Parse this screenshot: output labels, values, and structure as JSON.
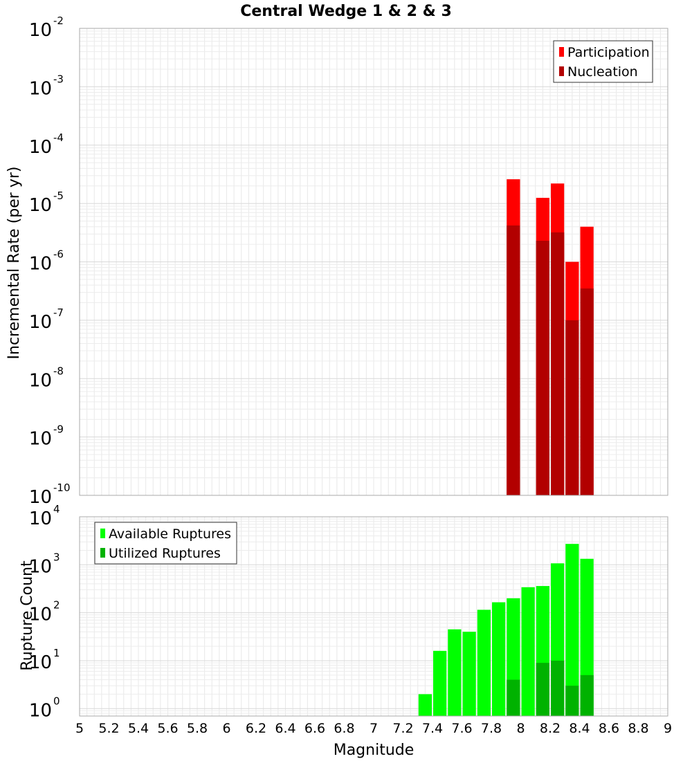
{
  "chart_data": [
    {
      "type": "bar",
      "title": "Central Wedge 1 & 2 & 3",
      "xlabel": "",
      "ylabel": "Incremental Rate (per yr)",
      "yscale": "log",
      "xlim": [
        5,
        9
      ],
      "ylim": [
        1e-10,
        0.01
      ],
      "yticks": [
        {
          "base": "10",
          "exp": "-2"
        },
        {
          "base": "10",
          "exp": "-3"
        },
        {
          "base": "10",
          "exp": "-4"
        },
        {
          "base": "10",
          "exp": "-5"
        },
        {
          "base": "10",
          "exp": "-6"
        },
        {
          "base": "10",
          "exp": "-7"
        },
        {
          "base": "10",
          "exp": "-8"
        },
        {
          "base": "10",
          "exp": "-9"
        },
        {
          "base": "10",
          "exp": "-10"
        }
      ],
      "grid": true,
      "legend_position": "top-right",
      "series": [
        {
          "name": "Participation",
          "color": "#ff0000",
          "x": [
            7.95,
            8.15,
            8.25,
            8.35,
            8.45
          ],
          "values": [
            2.6e-05,
            1.25e-05,
            2.2e-05,
            1e-06,
            4e-06
          ]
        },
        {
          "name": "Nucleation",
          "color": "#b20000",
          "x": [
            7.95,
            8.15,
            8.25,
            8.35,
            8.45
          ],
          "values": [
            4.2e-06,
            2.3e-06,
            3.2e-06,
            1e-07,
            3.5e-07
          ]
        }
      ]
    },
    {
      "type": "bar",
      "title": "",
      "xlabel": "Magnitude",
      "ylabel": "Rupture Count",
      "yscale": "log",
      "xlim": [
        5,
        9
      ],
      "ylim": [
        0.7,
        10000
      ],
      "xticks": [
        "5",
        "5.2",
        "5.4",
        "5.6",
        "5.8",
        "6",
        "6.2",
        "6.4",
        "6.6",
        "6.8",
        "7",
        "7.2",
        "7.4",
        "7.6",
        "7.8",
        "8",
        "8.2",
        "8.4",
        "8.6",
        "8.8",
        "9"
      ],
      "yticks": [
        {
          "base": "10",
          "exp": "4"
        },
        {
          "base": "10",
          "exp": "3"
        },
        {
          "base": "10",
          "exp": "2"
        },
        {
          "base": "10",
          "exp": "1"
        },
        {
          "base": "10",
          "exp": "0"
        }
      ],
      "grid": true,
      "legend_position": "top-left",
      "series": [
        {
          "name": "Available Ruptures",
          "color": "#00ff00",
          "x": [
            7.35,
            7.45,
            7.55,
            7.65,
            7.75,
            7.85,
            7.95,
            8.05,
            8.15,
            8.25,
            8.35,
            8.45
          ],
          "values": [
            2,
            16,
            45,
            40,
            115,
            165,
            200,
            340,
            360,
            1070,
            2720,
            1330
          ]
        },
        {
          "name": "Utilized Ruptures",
          "color": "#00b200",
          "x": [
            7.95,
            8.15,
            8.25,
            8.35,
            8.45
          ],
          "values": [
            4,
            9,
            10,
            3,
            5
          ]
        }
      ]
    }
  ]
}
